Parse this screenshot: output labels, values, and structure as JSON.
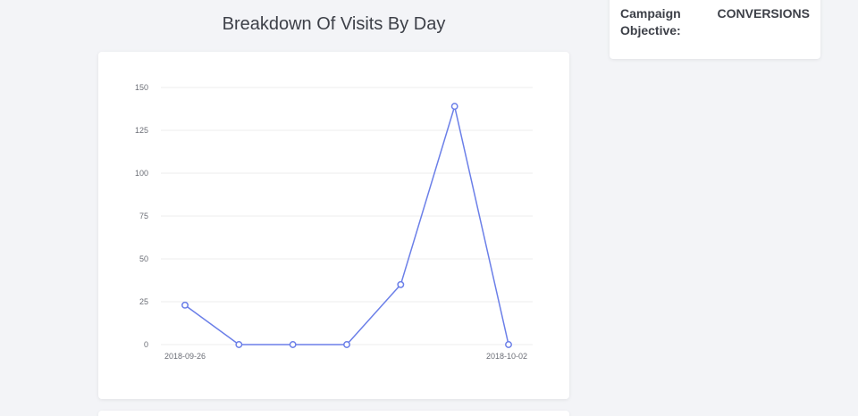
{
  "heading": "Breakdown Of Visits By Day",
  "campaign": {
    "label": "Campaign Objective:",
    "value": "CONVERSIONS"
  },
  "colors": {
    "line": "#6b7fe8",
    "grid": "#ececec"
  },
  "chart_data": {
    "type": "line",
    "title": "",
    "xlabel": "",
    "ylabel": "",
    "x": [
      "2018-09-26",
      "2018-09-27",
      "2018-09-28",
      "2018-09-29",
      "2018-09-30",
      "2018-10-01",
      "2018-10-02"
    ],
    "x_tick_labels": [
      "2018-09-26",
      "2018-10-02"
    ],
    "series": [
      {
        "values": [
          23,
          0,
          0,
          0,
          35,
          139,
          0
        ]
      }
    ],
    "ylim": [
      0,
      150
    ],
    "y_ticks": [
      0,
      25,
      50,
      75,
      100,
      125,
      150
    ],
    "grid": true
  }
}
